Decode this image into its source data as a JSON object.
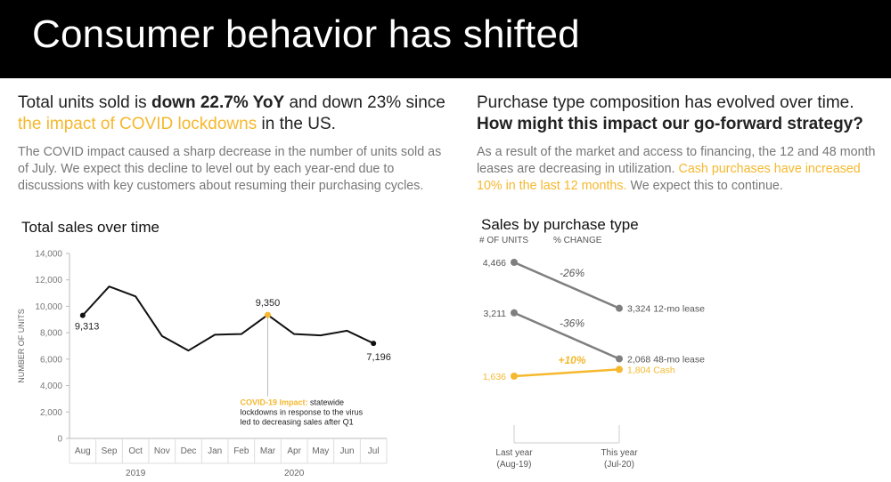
{
  "banner": {
    "title": "Consumer behavior has shifted"
  },
  "left_panel": {
    "headline_pre": "Total units sold is ",
    "headline_bold": "down 22.7% YoY",
    "headline_mid": " and down 23% since ",
    "headline_highlight": "the impact of COVID lockdowns",
    "headline_post": " in the US.",
    "body": "The COVID impact caused a sharp decrease in the number of units sold as of July. We expect this decline to level out by each year-end due to discussions with key customers about resuming their purchasing cycles."
  },
  "right_panel": {
    "headline_line1": "Purchase type composition has evolved over time.",
    "headline_bold": "How might this impact our go-forward strategy?",
    "body_pre": "As a result of the market and access to financing, the 12 and 48 month leases are decreasing in utilization. ",
    "body_highlight": "Cash purchases have increased 10% in the last 12 months.",
    "body_post": " We expect this to continue."
  },
  "colors": {
    "highlight": "#f5b82e",
    "line": "#111111",
    "slope_gray": "#7f7f7f",
    "axis": "#bbbbbb"
  },
  "chart_data": [
    {
      "type": "line",
      "title": "Total sales over time",
      "ylabel": "NUMBER OF UNITS",
      "xlabel": "",
      "categories": [
        "Aug",
        "Sep",
        "Oct",
        "Nov",
        "Dec",
        "Jan",
        "Feb",
        "Mar",
        "Apr",
        "May",
        "Jun",
        "Jul"
      ],
      "year_groups": [
        {
          "label": "2019",
          "start": 0,
          "end": 4
        },
        {
          "label": "2020",
          "start": 5,
          "end": 11
        }
      ],
      "values": [
        9313,
        11500,
        10750,
        7750,
        6650,
        7850,
        7900,
        9350,
        7900,
        7800,
        8150,
        7196
      ],
      "ylim": [
        0,
        14000
      ],
      "yticks": [
        0,
        2000,
        4000,
        6000,
        8000,
        10000,
        12000,
        14000
      ],
      "ytick_labels": [
        "0",
        "2,000",
        "4,000",
        "6,000",
        "8,000",
        "10,000",
        "12,000",
        "14,000"
      ],
      "point_labels": [
        {
          "index": 0,
          "text": "9,313"
        },
        {
          "index": 7,
          "text": "9,350"
        },
        {
          "index": 11,
          "text": "7,196"
        }
      ],
      "highlight_index": 7,
      "annotation": {
        "lead": "COVID-19 Impact:",
        "lines": [
          "statewide",
          "lockdowns in response to the virus",
          "led to decreasing sales after Q1"
        ]
      },
      "grid": false
    },
    {
      "type": "line",
      "title": "Sales by purchase type",
      "subheaders": [
        "# OF UNITS",
        "% CHANGE"
      ],
      "categories": [
        "Last year",
        "This year"
      ],
      "category_sublabels": [
        "(Aug-19)",
        "(Jul-20)"
      ],
      "series": [
        {
          "name": "12-mo lease",
          "values": [
            4466,
            3324
          ],
          "start_label": "4,466",
          "end_label": "3,324",
          "change": "-26%",
          "color": "#7f7f7f"
        },
        {
          "name": "48-mo lease",
          "values": [
            3211,
            2068
          ],
          "start_label": "3,211",
          "end_label": "2,068",
          "change": "-36%",
          "color": "#7f7f7f"
        },
        {
          "name": "Cash",
          "values": [
            1636,
            1804
          ],
          "start_label": "1,636",
          "end_label": "1,804",
          "change": "+10%",
          "color": "#f5b82e"
        }
      ]
    }
  ]
}
